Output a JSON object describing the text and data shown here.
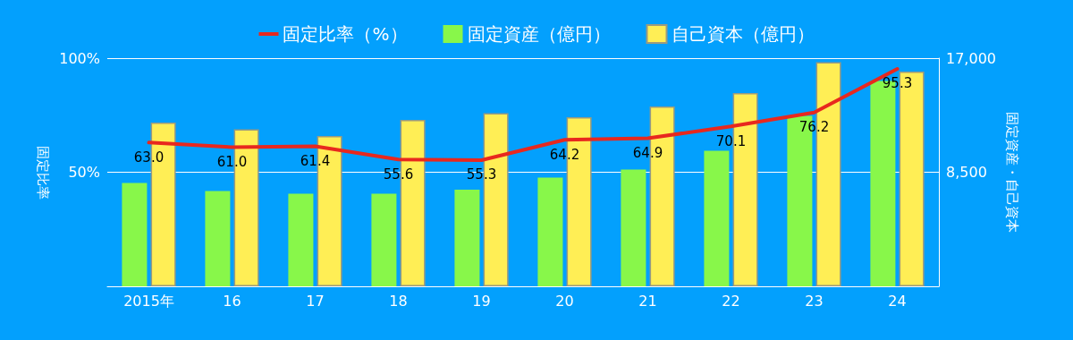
{
  "chart_data": {
    "type": "bar",
    "categories": [
      "2015年",
      "16",
      "17",
      "18",
      "19",
      "20",
      "21",
      "22",
      "23",
      "24"
    ],
    "series": [
      {
        "name": "固定比率（%）",
        "type": "line",
        "color": "#e8281e",
        "values": [
          63.0,
          61.0,
          61.4,
          55.6,
          55.3,
          64.2,
          64.9,
          70.1,
          76.2,
          95.3
        ],
        "value_labels": [
          "63.0",
          "61.0",
          "61.4",
          "55.6",
          "55.3",
          "64.2",
          "64.9",
          "70.1",
          "76.2",
          "95.3"
        ]
      },
      {
        "name": "固定資産（億円）",
        "axis": "y2",
        "color": "#88f74a",
        "values": [
          7700,
          7100,
          6900,
          6900,
          7200,
          8100,
          8700,
          10100,
          12700,
          15300
        ]
      },
      {
        "name": "自己資本（億円）",
        "axis": "y2",
        "color": "#ffee55",
        "values": [
          12200,
          11700,
          11200,
          12400,
          12900,
          12600,
          13400,
          14400,
          16700,
          16000
        ]
      }
    ],
    "ylabel": "固定比率",
    "y2label": "固定資産・自己資本",
    "ylim": [
      0,
      100
    ],
    "yticks": [
      {
        "value": 0,
        "label": null
      },
      {
        "value": 50,
        "label": "50%"
      },
      {
        "value": 100,
        "label": "100%"
      }
    ],
    "y2lim": [
      0,
      17000
    ],
    "y2ticks": [
      {
        "value": 0,
        "label": null
      },
      {
        "value": 8500,
        "label": "8,500"
      },
      {
        "value": 17000,
        "label": "17,000"
      }
    ],
    "grid": "y",
    "legend": "top",
    "marker": "none",
    "line_style": "solid"
  }
}
